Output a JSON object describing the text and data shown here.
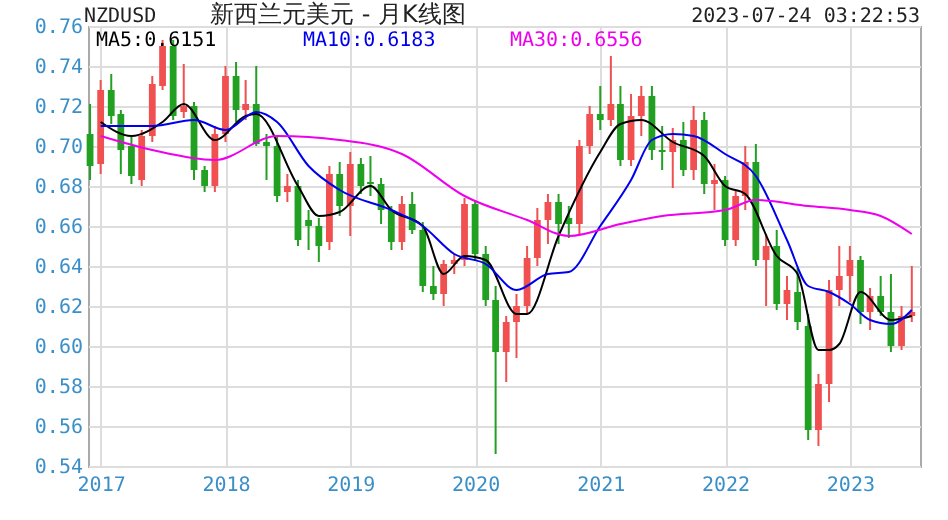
{
  "chart_data": {
    "type": "candlestick",
    "title": "新西兰元美元 - 月K线图",
    "subtitle": "NZDUSD",
    "annotations": [
      "2023-07-24 03:22:53"
    ],
    "xlim": [
      "2016-11-25",
      "2023-07-25"
    ],
    "xticks": [
      "2017",
      "2018",
      "2019",
      "2020",
      "2021",
      "2022",
      "2023"
    ],
    "ylim": [
      0.54,
      0.76
    ],
    "yticks": [
      0.54,
      0.56,
      0.58,
      {
        "value": 0.6,
        "label": "0.60"
      },
      0.62,
      0.64,
      0.66,
      0.68,
      {
        "value": 0.7,
        "label": "0.70"
      },
      0.72,
      0.74,
      0.76
    ],
    "grid": true,
    "legend": "top left",
    "series": [
      {
        "color": "#f05050",
        "x": [
          "2017-01",
          "2017-05",
          "2017-06",
          "2017-07",
          "2017-09",
          "2017-12",
          "2018-01",
          "2018-03",
          "2018-07",
          "2018-11",
          "2019-01",
          "2019-06",
          "2019-10",
          "2019-11",
          "2019-12",
          "2020-04",
          "2020-05",
          "2020-06",
          "2020-07",
          "2020-08",
          "2020-11",
          "2020-12",
          "2021-02",
          "2021-04",
          "2021-05",
          "2021-08",
          "2021-10",
          "2021-12",
          "2022-02",
          "2022-03",
          "2022-05",
          "2022-07",
          "2022-10",
          "2022-11",
          "2022-12",
          "2023-01",
          "2023-03",
          "2023-06",
          "2023-07"
        ],
        "ohlc": [
          [
            0.691,
            0.733,
            0.686,
            0.728
          ],
          [
            0.683,
            0.708,
            0.68,
            0.705
          ],
          [
            0.705,
            0.735,
            0.702,
            0.731
          ],
          [
            0.73,
            0.753,
            0.728,
            0.75
          ],
          [
            0.717,
            0.741,
            0.714,
            0.72
          ],
          [
            0.68,
            0.71,
            0.677,
            0.706
          ],
          [
            0.706,
            0.74,
            0.702,
            0.735
          ],
          [
            0.718,
            0.733,
            0.713,
            0.721
          ],
          [
            0.677,
            0.686,
            0.672,
            0.68
          ],
          [
            0.652,
            0.69,
            0.648,
            0.686
          ],
          [
            0.67,
            0.697,
            0.655,
            0.691
          ],
          [
            0.652,
            0.675,
            0.648,
            0.671
          ],
          [
            0.626,
            0.643,
            0.62,
            0.641
          ],
          [
            0.641,
            0.646,
            0.636,
            0.643
          ],
          [
            0.643,
            0.674,
            0.64,
            0.671
          ],
          [
            0.597,
            0.615,
            0.582,
            0.612
          ],
          [
            0.612,
            0.626,
            0.594,
            0.62
          ],
          [
            0.62,
            0.65,
            0.616,
            0.644
          ],
          [
            0.644,
            0.669,
            0.64,
            0.663
          ],
          [
            0.663,
            0.676,
            0.651,
            0.672
          ],
          [
            0.661,
            0.703,
            0.655,
            0.7
          ],
          [
            0.7,
            0.72,
            0.696,
            0.716
          ],
          [
            0.713,
            0.745,
            0.71,
            0.721
          ],
          [
            0.693,
            0.726,
            0.69,
            0.715
          ],
          [
            0.715,
            0.73,
            0.705,
            0.725
          ],
          [
            0.697,
            0.709,
            0.679,
            0.703
          ],
          [
            0.688,
            0.72,
            0.683,
            0.713
          ],
          [
            0.681,
            0.691,
            0.668,
            0.683
          ],
          [
            0.653,
            0.678,
            0.65,
            0.675
          ],
          [
            0.675,
            0.7,
            0.668,
            0.692
          ],
          [
            0.643,
            0.656,
            0.62,
            0.65
          ],
          [
            0.621,
            0.635,
            0.613,
            0.628
          ],
          [
            0.558,
            0.586,
            0.55,
            0.581
          ],
          [
            0.581,
            0.633,
            0.572,
            0.628
          ],
          [
            0.628,
            0.65,
            0.62,
            0.635
          ],
          [
            0.635,
            0.65,
            0.622,
            0.643
          ],
          [
            0.617,
            0.629,
            0.608,
            0.625
          ],
          [
            0.6,
            0.62,
            0.598,
            0.615
          ],
          [
            0.615,
            0.64,
            0.612,
            0.617
          ]
        ]
      },
      {
        "color": "#22a022",
        "x": [
          "2016-12",
          "2017-02",
          "2017-03",
          "2017-04",
          "2017-08",
          "2017-10",
          "2017-11",
          "2018-02",
          "2018-04",
          "2018-05",
          "2018-06",
          "2018-08",
          "2018-09",
          "2018-10",
          "2018-12",
          "2019-02",
          "2019-03",
          "2019-04",
          "2019-05",
          "2019-07",
          "2019-08",
          "2019-09",
          "2020-01",
          "2020-02",
          "2020-03",
          "2020-09",
          "2020-10",
          "2021-01",
          "2021-03",
          "2021-06",
          "2021-07",
          "2021-09",
          "2021-11",
          "2022-01",
          "2022-04",
          "2022-06",
          "2022-08",
          "2022-09",
          "2023-02",
          "2023-04",
          "2023-05"
        ],
        "ohlc": [
          [
            0.706,
            0.721,
            0.683,
            0.69
          ],
          [
            0.728,
            0.736,
            0.711,
            0.715
          ],
          [
            0.716,
            0.718,
            0.686,
            0.698
          ],
          [
            0.7,
            0.705,
            0.681,
            0.685
          ],
          [
            0.75,
            0.753,
            0.713,
            0.715
          ],
          [
            0.72,
            0.722,
            0.683,
            0.688
          ],
          [
            0.688,
            0.69,
            0.677,
            0.68
          ],
          [
            0.735,
            0.742,
            0.712,
            0.718
          ],
          [
            0.721,
            0.74,
            0.7,
            0.701
          ],
          [
            0.702,
            0.706,
            0.683,
            0.7
          ],
          [
            0.7,
            0.705,
            0.672,
            0.675
          ],
          [
            0.68,
            0.683,
            0.65,
            0.653
          ],
          [
            0.663,
            0.668,
            0.648,
            0.66
          ],
          [
            0.66,
            0.664,
            0.642,
            0.65
          ],
          [
            0.686,
            0.692,
            0.665,
            0.67
          ],
          [
            0.691,
            0.694,
            0.676,
            0.68
          ],
          [
            0.682,
            0.695,
            0.675,
            0.681
          ],
          [
            0.681,
            0.684,
            0.661,
            0.668
          ],
          [
            0.668,
            0.67,
            0.648,
            0.652
          ],
          [
            0.671,
            0.677,
            0.656,
            0.658
          ],
          [
            0.658,
            0.662,
            0.627,
            0.63
          ],
          [
            0.63,
            0.64,
            0.623,
            0.626
          ],
          [
            0.671,
            0.673,
            0.643,
            0.646
          ],
          [
            0.646,
            0.65,
            0.62,
            0.623
          ],
          [
            0.623,
            0.63,
            0.546,
            0.597
          ],
          [
            0.672,
            0.676,
            0.651,
            0.661
          ],
          [
            0.664,
            0.67,
            0.654,
            0.661
          ],
          [
            0.716,
            0.73,
            0.708,
            0.713
          ],
          [
            0.721,
            0.73,
            0.69,
            0.693
          ],
          [
            0.725,
            0.73,
            0.693,
            0.698
          ],
          [
            0.698,
            0.71,
            0.688,
            0.697
          ],
          [
            0.703,
            0.712,
            0.685,
            0.688
          ],
          [
            0.713,
            0.717,
            0.676,
            0.681
          ],
          [
            0.683,
            0.685,
            0.65,
            0.653
          ],
          [
            0.692,
            0.701,
            0.64,
            0.643
          ],
          [
            0.65,
            0.658,
            0.618,
            0.621
          ],
          [
            0.627,
            0.639,
            0.608,
            0.612
          ],
          [
            0.61,
            0.616,
            0.553,
            0.558
          ],
          [
            0.643,
            0.645,
            0.611,
            0.617
          ],
          [
            0.625,
            0.635,
            0.615,
            0.617
          ],
          [
            0.617,
            0.636,
            0.597,
            0.6
          ]
        ]
      },
      {
        "type": "line",
        "name": "MA5:0.6151",
        "color": "#000000",
        "x": [
          "2017-01",
          "2017-04",
          "2017-07",
          "2017-09",
          "2017-12",
          "2018-03",
          "2018-04",
          "2018-08",
          "2018-10",
          "2018-12",
          "2019-03",
          "2019-05",
          "2019-08",
          "2019-10",
          "2019-12",
          "2020-02",
          "2020-05",
          "2020-06",
          "2020-09",
          "2021-01",
          "2021-03",
          "2021-05",
          "2021-08",
          "2021-11",
          "2022-01",
          "2022-03",
          "2022-06",
          "2022-08",
          "2022-10",
          "2022-11",
          "2022-12",
          "2023-02",
          "2023-05",
          "2023-07"
        ],
        "values": [
          0.712,
          0.705,
          0.712,
          0.721,
          0.703,
          0.715,
          0.716,
          0.68,
          0.665,
          0.667,
          0.68,
          0.668,
          0.66,
          0.636,
          0.645,
          0.643,
          0.616,
          0.616,
          0.655,
          0.697,
          0.711,
          0.713,
          0.702,
          0.695,
          0.68,
          0.676,
          0.645,
          0.636,
          0.598,
          0.598,
          0.601,
          0.627,
          0.613,
          0.615
        ]
      },
      {
        "type": "line",
        "name": "MA10:0.6183",
        "color": "#0000ee",
        "x": [
          "2017-01",
          "2017-06",
          "2017-10",
          "2018-01",
          "2018-04",
          "2018-06",
          "2018-09",
          "2018-12",
          "2019-05",
          "2019-08",
          "2019-11",
          "2020-02",
          "2020-05",
          "2020-08",
          "2020-10",
          "2021-01",
          "2021-04",
          "2021-06",
          "2021-08",
          "2021-10",
          "2022-01",
          "2022-04",
          "2022-07",
          "2022-09",
          "2022-11",
          "2023-01",
          "2023-03",
          "2023-05",
          "2023-07"
        ],
        "values": [
          0.71,
          0.71,
          0.713,
          0.708,
          0.717,
          0.712,
          0.69,
          0.678,
          0.668,
          0.66,
          0.646,
          0.641,
          0.628,
          0.636,
          0.637,
          0.66,
          0.683,
          0.703,
          0.706,
          0.705,
          0.696,
          0.685,
          0.653,
          0.63,
          0.627,
          0.621,
          0.613,
          0.611,
          0.618
        ]
      },
      {
        "type": "line",
        "name": "MA30:0.6556",
        "color": "#ee00ee",
        "x": [
          "2017-01",
          "2017-06",
          "2017-12",
          "2018-06",
          "2018-12",
          "2019-06",
          "2019-12",
          "2020-06",
          "2020-10",
          "2021-03",
          "2021-07",
          "2022-01",
          "2022-04",
          "2022-09",
          "2023-01",
          "2023-04",
          "2023-07"
        ],
        "values": [
          0.705,
          0.698,
          0.693,
          0.705,
          0.703,
          0.696,
          0.675,
          0.663,
          0.655,
          0.661,
          0.665,
          0.668,
          0.673,
          0.67,
          0.668,
          0.665,
          0.656
        ]
      }
    ]
  }
}
